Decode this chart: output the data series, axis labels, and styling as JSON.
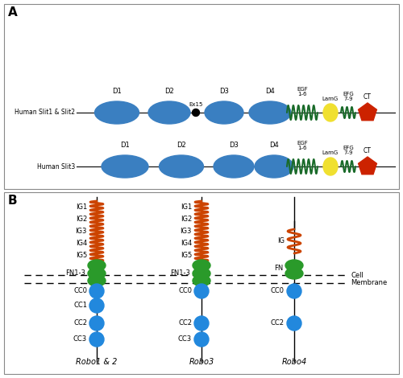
{
  "fig_width": 5.0,
  "fig_height": 4.7,
  "dpi": 100,
  "bg_color": "#ffffff",
  "panel_A_label": "A",
  "panel_B_label": "B",
  "blue_color": "#3a7fc1",
  "dark_green": "#1a6b2a",
  "yellow_color": "#f0e030",
  "red_color": "#cc2200",
  "orange_color": "#cc4400",
  "green_color": "#2a9a2a",
  "blue_cc_color": "#2288dd",
  "slit1_2_label": "Human Slit1 & Slit2",
  "slit3_label": "Human Slit3",
  "robo_labels": [
    "Robo1 & 2",
    "Robo3",
    "Robo4"
  ],
  "cell_membrane_label": "Cell\nMembrane"
}
